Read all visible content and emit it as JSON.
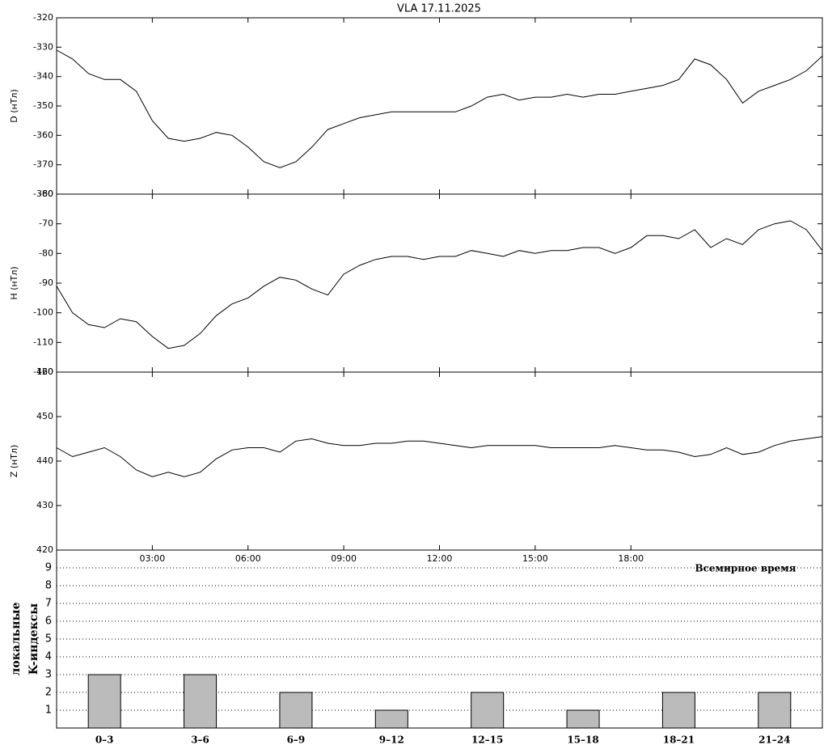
{
  "chart_data": [
    {
      "type": "line",
      "title": "VLA   17.11.2025",
      "ylabel": "D (нТл)",
      "color": "#000000",
      "xlim": [
        0,
        24
      ],
      "ylim": [
        -380,
        -320
      ],
      "yticks": [
        -320,
        -330,
        -340,
        -350,
        -360,
        -370,
        -380
      ],
      "x": [
        0,
        0.5,
        1,
        1.5,
        2,
        2.5,
        3,
        3.5,
        4,
        4.5,
        5,
        5.5,
        6,
        6.5,
        7,
        7.5,
        8,
        8.5,
        9,
        9.5,
        10,
        10.5,
        11,
        11.5,
        12,
        12.5,
        13,
        13.5,
        14,
        14.5,
        15,
        15.5,
        16,
        16.5,
        17,
        17.5,
        18,
        18.5,
        19,
        19.5,
        20,
        20.5,
        21,
        21.5,
        22,
        22.5,
        23,
        23.5,
        24
      ],
      "values": [
        -331,
        -334,
        -339,
        -341,
        -341,
        -345,
        -355,
        -361,
        -362,
        -361,
        -359,
        -360,
        -364,
        -369,
        -371,
        -369,
        -364,
        -358,
        -356,
        -354,
        -353,
        -352,
        -352,
        -352,
        -352,
        -352,
        -350,
        -347,
        -346,
        -348,
        -347,
        -347,
        -346,
        -347,
        -346,
        -346,
        -345,
        -344,
        -343,
        -341,
        -334,
        -336,
        -341,
        -349,
        -345,
        -343,
        -341,
        -338,
        -333
      ]
    },
    {
      "type": "line",
      "ylabel": "H (нТл)",
      "color": "#000000",
      "xlim": [
        0,
        24
      ],
      "ylim": [
        -120,
        -60
      ],
      "yticks": [
        -60,
        -70,
        -80,
        -90,
        -100,
        -110,
        -120
      ],
      "x": [
        0,
        0.5,
        1,
        1.5,
        2,
        2.5,
        3,
        3.5,
        4,
        4.5,
        5,
        5.5,
        6,
        6.5,
        7,
        7.5,
        8,
        8.5,
        9,
        9.5,
        10,
        10.5,
        11,
        11.5,
        12,
        12.5,
        13,
        13.5,
        14,
        14.5,
        15,
        15.5,
        16,
        16.5,
        17,
        17.5,
        18,
        18.5,
        19,
        19.5,
        20,
        20.5,
        21,
        21.5,
        22,
        22.5,
        23,
        23.5,
        24
      ],
      "values": [
        -91,
        -100,
        -104,
        -105,
        -102,
        -103,
        -108,
        -112,
        -111,
        -107,
        -101,
        -97,
        -95,
        -91,
        -88,
        -89,
        -92,
        -94,
        -87,
        -84,
        -82,
        -81,
        -81,
        -82,
        -81,
        -81,
        -79,
        -80,
        -81,
        -79,
        -80,
        -79,
        -79,
        -78,
        -78,
        -80,
        -78,
        -74,
        -74,
        -75,
        -72,
        -78,
        -75,
        -77,
        -72,
        -70,
        -69,
        -72,
        -79
      ]
    },
    {
      "type": "line",
      "ylabel": "Z (нТл)",
      "color": "#000000",
      "xlim": [
        0,
        24
      ],
      "ylim": [
        420,
        460
      ],
      "yticks": [
        460,
        450,
        440,
        430,
        420
      ],
      "xticks": [
        {
          "value": 3,
          "label": "03:00"
        },
        {
          "value": 6,
          "label": "06:00"
        },
        {
          "value": 9,
          "label": "09:00"
        },
        {
          "value": 12,
          "label": "12:00"
        },
        {
          "value": 15,
          "label": "15:00"
        },
        {
          "value": 18,
          "label": "18:00"
        }
      ],
      "x": [
        0,
        0.5,
        1,
        1.5,
        2,
        2.5,
        3,
        3.5,
        4,
        4.5,
        5,
        5.5,
        6,
        6.5,
        7,
        7.5,
        8,
        8.5,
        9,
        9.5,
        10,
        10.5,
        11,
        11.5,
        12,
        12.5,
        13,
        13.5,
        14,
        14.5,
        15,
        15.5,
        16,
        16.5,
        17,
        17.5,
        18,
        18.5,
        19,
        19.5,
        20,
        20.5,
        21,
        21.5,
        22,
        22.5,
        23,
        23.5,
        24
      ],
      "values": [
        443,
        441,
        442,
        443,
        441,
        438,
        436.5,
        437.5,
        436.5,
        437.5,
        440.5,
        442.5,
        443,
        443,
        442,
        444.5,
        445,
        444,
        443.5,
        443.5,
        444,
        444,
        444.5,
        444.5,
        444,
        443.5,
        443,
        443.5,
        443.5,
        443.5,
        443.5,
        443,
        443,
        443,
        443,
        443.5,
        443,
        442.5,
        442.5,
        442,
        441,
        441.5,
        443,
        441.5,
        442,
        443.5,
        444.5,
        445,
        445.5
      ]
    },
    {
      "type": "bar",
      "xlabel": "Всемирное время",
      "ylabel": [
        "локальные",
        "K-индексы"
      ],
      "color": "#bbbbbb",
      "grid": true,
      "ylim": [
        0,
        10
      ],
      "yticks": [
        1,
        2,
        3,
        4,
        5,
        6,
        7,
        8,
        9
      ],
      "categories": [
        "0–3",
        "3–6",
        "6–9",
        "9–12",
        "12–15",
        "15–18",
        "18–21",
        "21–24"
      ],
      "values": [
        3,
        3,
        2,
        1,
        2,
        1,
        2,
        2
      ]
    }
  ]
}
